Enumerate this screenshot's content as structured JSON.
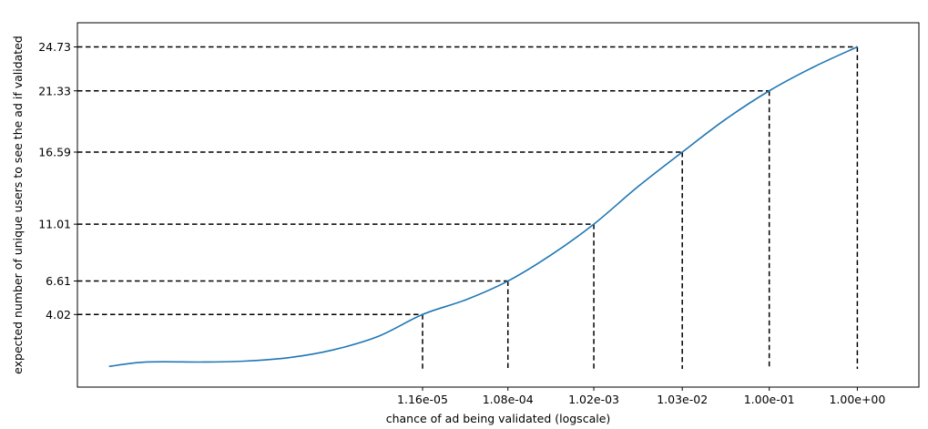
{
  "chart_data": {
    "type": "line",
    "title": "",
    "xlabel": "chance of ad being validated (logscale)",
    "ylabel": "expected number of unique users to see the ad if validated",
    "xscale": "log",
    "xlim": [
      1.4e-09,
      5.0
    ],
    "ylim": [
      -1.6,
      26.6
    ],
    "grid": false,
    "x_tick_labels": [
      "1.16e-05",
      "1.08e-04",
      "1.02e-03",
      "1.03e-02",
      "1.00e-01",
      "1.00e+00"
    ],
    "y_tick_labels": [
      "4.02",
      "6.61",
      "11.01",
      "16.59",
      "21.33",
      "24.73"
    ],
    "series": [
      {
        "color": "#1f77b4",
        "points": [
          [
            3.2e-09,
            0.0
          ],
          [
            8.5e-09,
            0.34
          ],
          [
            3.8e-08,
            0.34
          ],
          [
            1.1e-07,
            0.41
          ],
          [
            3.6e-07,
            0.69
          ],
          [
            1.1e-06,
            1.27
          ],
          [
            3.6e-06,
            2.31
          ],
          [
            1.16e-05,
            4.02
          ],
          [
            3.6e-05,
            5.16
          ],
          [
            0.000108,
            6.61
          ],
          [
            0.00033,
            8.61
          ],
          [
            0.00102,
            11.01
          ],
          [
            0.0032,
            13.89
          ],
          [
            0.0103,
            16.59
          ],
          [
            0.032,
            19.13
          ],
          [
            0.1,
            21.33
          ],
          [
            0.32,
            23.18
          ],
          [
            1.0,
            24.73
          ]
        ]
      }
    ],
    "reference_lines": [
      {
        "x": 1.16e-05,
        "y": 4.02
      },
      {
        "x": 0.000108,
        "y": 6.61
      },
      {
        "x": 0.00102,
        "y": 11.01
      },
      {
        "x": 0.0103,
        "y": 16.59
      },
      {
        "x": 0.1,
        "y": 21.33
      },
      {
        "x": 1.0,
        "y": 24.73
      }
    ],
    "reference_line_color": "#000000"
  }
}
